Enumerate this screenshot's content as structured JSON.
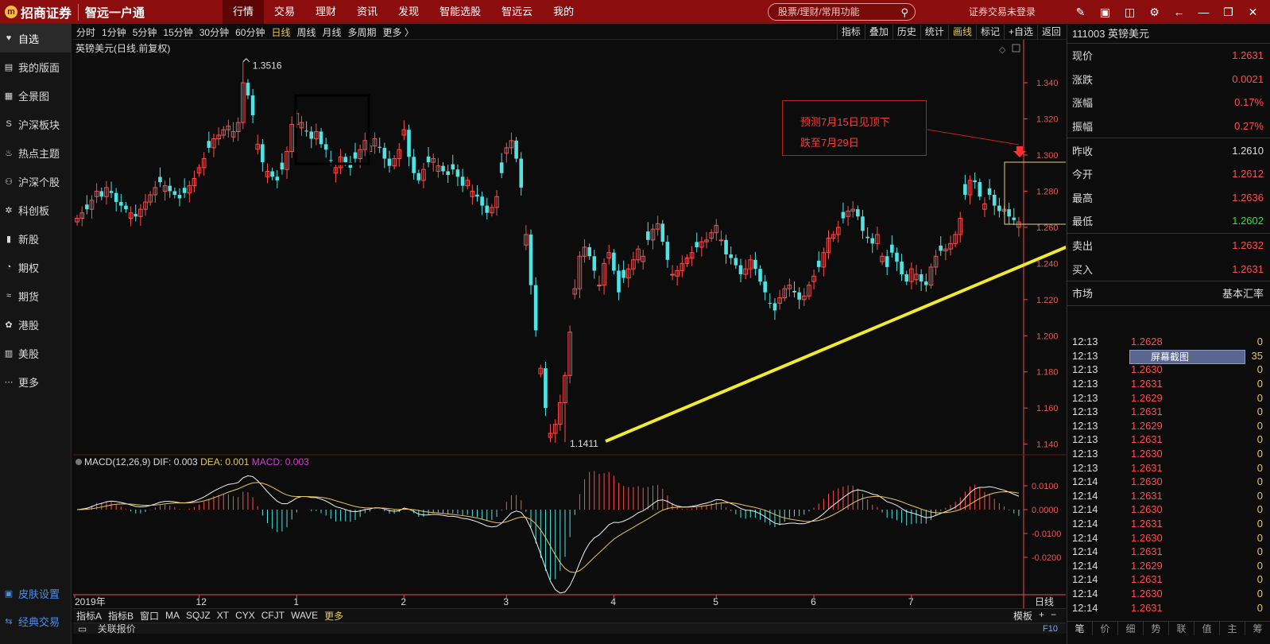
{
  "logo": {
    "brand": "招商证券",
    "slogan": "智远一户通"
  },
  "topnav": [
    {
      "label": "行情",
      "active": true
    },
    {
      "label": "交易"
    },
    {
      "label": "理财"
    },
    {
      "label": "资讯"
    },
    {
      "label": "发现",
      "dot": true
    },
    {
      "label": "智能选股"
    },
    {
      "label": "智远云"
    },
    {
      "label": "我的"
    }
  ],
  "search": {
    "placeholder": "股票/理财/常用功能"
  },
  "login_status": "证券交易未登录",
  "sidebar": [
    {
      "label": "自选",
      "icon": "heart-icon",
      "active": true
    },
    {
      "label": "我的版面",
      "icon": "layout-icon"
    },
    {
      "label": "全景图",
      "icon": "panorama-icon"
    },
    {
      "label": "沪深板块",
      "icon": "sh-icon"
    },
    {
      "label": "热点主题",
      "icon": "flame-icon"
    },
    {
      "label": "沪深个股",
      "icon": "stock-icon"
    },
    {
      "label": "科创板",
      "icon": "star-market-icon"
    },
    {
      "label": "新股",
      "icon": "bars-icon"
    },
    {
      "label": "期权",
      "icon": "option-icon"
    },
    {
      "label": "期货",
      "icon": "futures-icon"
    },
    {
      "label": "港股",
      "icon": "hk-icon"
    },
    {
      "label": "美股",
      "icon": "us-icon"
    },
    {
      "label": "更多",
      "icon": "more-icon"
    }
  ],
  "sidebar_bottom": [
    {
      "label": "皮肤设置",
      "icon": "skin-icon"
    },
    {
      "label": "经典交易",
      "icon": "trade-icon"
    }
  ],
  "periods": [
    {
      "label": "分时"
    },
    {
      "label": "1分钟"
    },
    {
      "label": "5分钟"
    },
    {
      "label": "15分钟"
    },
    {
      "label": "30分钟"
    },
    {
      "label": "60分钟"
    },
    {
      "label": "日线",
      "selected": true
    },
    {
      "label": "周线"
    },
    {
      "label": "月线"
    },
    {
      "label": "多周期"
    },
    {
      "label": "更多 〉"
    }
  ],
  "tools": [
    {
      "label": "指标"
    },
    {
      "label": "叠加"
    },
    {
      "label": "历史"
    },
    {
      "label": "统计"
    },
    {
      "label": "画线",
      "selected": true
    },
    {
      "label": "标记"
    },
    {
      "label": "+自选"
    },
    {
      "label": "返回"
    }
  ],
  "chart_title": "英镑美元(日线.前复权)",
  "macd": {
    "name": "MACD(12,26,9)",
    "dif": "DIF: 0.003",
    "dea": "DEA: 0.001",
    "macd": "MACD: 0.003"
  },
  "annotation": {
    "line1": "预测7月15日见顶下",
    "line2": "跌至7月29日"
  },
  "colors": {
    "up": "#ff4d4d",
    "down": "#4fe3e3",
    "trend": "#f2ea2c",
    "axis": "#e05050"
  },
  "chart_data": {
    "type": "candlestick",
    "symbol": "英镑美元",
    "period": "日线",
    "y_ticks": [
      "1.340",
      "1.320",
      "1.300",
      "1.280",
      "1.260",
      "1.240",
      "1.220",
      "1.200",
      "1.180",
      "1.160",
      "1.140"
    ],
    "ylim": [
      1.135,
      1.355
    ],
    "x_ticks": [
      {
        "label": "2019年",
        "i": 0
      },
      {
        "label": "12",
        "i": 25
      },
      {
        "label": "1",
        "i": 45
      },
      {
        "label": "2",
        "i": 67
      },
      {
        "label": "3",
        "i": 88
      },
      {
        "label": "4",
        "i": 110
      },
      {
        "label": "5",
        "i": 131
      },
      {
        "label": "6",
        "i": 151
      },
      {
        "label": "7",
        "i": 171
      }
    ],
    "period_label": "日线",
    "high_label": "1.3516",
    "low_label": "1.1411",
    "high_index": 34,
    "low_index": 100,
    "closes": [
      1.265,
      1.268,
      1.27,
      1.275,
      1.28,
      1.277,
      1.282,
      1.279,
      1.274,
      1.272,
      1.27,
      1.268,
      1.266,
      1.27,
      1.274,
      1.278,
      1.282,
      1.285,
      1.283,
      1.28,
      1.278,
      1.276,
      1.279,
      1.283,
      1.287,
      1.293,
      1.298,
      1.304,
      1.309,
      1.311,
      1.314,
      1.316,
      1.313,
      1.318,
      1.34,
      1.333,
      1.322,
      1.306,
      1.296,
      1.291,
      1.288,
      1.286,
      1.292,
      1.302,
      1.317,
      1.323,
      1.318,
      1.313,
      1.309,
      1.313,
      1.306,
      1.303,
      1.297,
      1.293,
      1.299,
      1.296,
      1.293,
      1.298,
      1.303,
      1.308,
      1.305,
      1.309,
      1.304,
      1.298,
      1.294,
      1.298,
      1.303,
      1.314,
      1.299,
      1.29,
      1.286,
      1.292,
      1.296,
      1.298,
      1.294,
      1.291,
      1.289,
      1.292,
      1.288,
      1.283,
      1.286,
      1.28,
      1.277,
      1.272,
      1.268,
      1.271,
      1.277,
      1.29,
      1.304,
      1.308,
      1.298,
      1.282,
      1.256,
      1.228,
      1.203,
      1.182,
      1.16,
      1.146,
      1.151,
      1.163,
      1.178,
      1.202,
      1.226,
      1.244,
      1.249,
      1.244,
      1.236,
      1.228,
      1.24,
      1.246,
      1.236,
      1.224,
      1.232,
      1.237,
      1.242,
      1.248,
      1.244,
      1.253,
      1.259,
      1.262,
      1.252,
      1.242,
      1.234,
      1.236,
      1.24,
      1.243,
      1.246,
      1.249,
      1.252,
      1.253,
      1.257,
      1.261,
      1.253,
      1.245,
      1.243,
      1.239,
      1.234,
      1.237,
      1.242,
      1.237,
      1.23,
      1.224,
      1.218,
      1.214,
      1.221,
      1.226,
      1.228,
      1.224,
      1.22,
      1.222,
      1.228,
      1.233,
      1.238,
      1.246,
      1.254,
      1.256,
      1.26,
      1.265,
      1.269,
      1.27,
      1.266,
      1.258,
      1.254,
      1.251,
      1.256,
      1.244,
      1.238,
      1.246,
      1.241,
      1.234,
      1.23,
      1.237,
      1.234,
      1.23,
      1.228,
      1.238,
      1.244,
      1.247,
      1.248,
      1.251,
      1.256,
      1.265,
      1.278,
      1.286,
      1.285,
      1.277,
      1.273,
      1.278,
      1.272,
      1.269,
      1.27,
      1.266,
      1.264,
      1.263
    ]
  },
  "quote": {
    "code_name": "111003 英镑美元",
    "rows1": [
      {
        "label": "现价",
        "value": "1.2631",
        "color": "red"
      },
      {
        "label": "涨跌",
        "value": "0.0021",
        "color": "red"
      },
      {
        "label": "涨幅",
        "value": "0.17%",
        "color": "red"
      },
      {
        "label": "振幅",
        "value": "0.27%",
        "color": "red"
      }
    ],
    "rows2": [
      {
        "label": "昨收",
        "value": "1.2610",
        "color": "gray"
      },
      {
        "label": "今开",
        "value": "1.2612",
        "color": "red"
      },
      {
        "label": "最高",
        "value": "1.2636",
        "color": "red"
      },
      {
        "label": "最低",
        "value": "1.2602",
        "color": "green"
      }
    ],
    "rows3": [
      {
        "label": "卖出",
        "value": "1.2632",
        "color": "red"
      },
      {
        "label": "买入",
        "value": "1.2631",
        "color": "red"
      }
    ],
    "market": {
      "label": "市场",
      "value": "基本汇率"
    }
  },
  "ticks": [
    {
      "time": "12:13",
      "price": "1.2628",
      "vol": "0"
    },
    {
      "time": "12:13",
      "price": "1.2630",
      "vol": "35"
    },
    {
      "time": "12:13",
      "price": "1.2630",
      "vol": "0"
    },
    {
      "time": "12:13",
      "price": "1.2631",
      "vol": "0"
    },
    {
      "time": "12:13",
      "price": "1.2629",
      "vol": "0"
    },
    {
      "time": "12:13",
      "price": "1.2631",
      "vol": "0"
    },
    {
      "time": "12:13",
      "price": "1.2629",
      "vol": "0"
    },
    {
      "time": "12:13",
      "price": "1.2631",
      "vol": "0"
    },
    {
      "time": "12:13",
      "price": "1.2630",
      "vol": "0"
    },
    {
      "time": "12:13",
      "price": "1.2631",
      "vol": "0"
    },
    {
      "time": "12:14",
      "price": "1.2630",
      "vol": "0"
    },
    {
      "time": "12:14",
      "price": "1.2631",
      "vol": "0"
    },
    {
      "time": "12:14",
      "price": "1.2630",
      "vol": "0"
    },
    {
      "time": "12:14",
      "price": "1.2631",
      "vol": "0"
    },
    {
      "time": "12:14",
      "price": "1.2630",
      "vol": "0"
    },
    {
      "time": "12:14",
      "price": "1.2631",
      "vol": "0"
    },
    {
      "time": "12:14",
      "price": "1.2629",
      "vol": "0"
    },
    {
      "time": "12:14",
      "price": "1.2631",
      "vol": "0"
    },
    {
      "time": "12:14",
      "price": "1.2630",
      "vol": "0"
    },
    {
      "time": "12:14",
      "price": "1.2631",
      "vol": "0"
    }
  ],
  "screen_capture_label": "屏幕截图",
  "right_tabs": [
    "笔",
    "价",
    "细",
    "势",
    "联",
    "值",
    "主",
    "筹"
  ],
  "bottom_tabs": [
    "指标A",
    "指标B",
    "窗口",
    "MA",
    "SQJZ",
    "XT",
    "CYX",
    "CFJT",
    "WAVE",
    "更多"
  ],
  "bottom_right": [
    "模板",
    "+",
    "−"
  ],
  "status_text": "关联报价",
  "f10_label": "F10",
  "macd_ticks": [
    "0.0100",
    "0.0000",
    "-0.0100",
    "-0.0200"
  ]
}
